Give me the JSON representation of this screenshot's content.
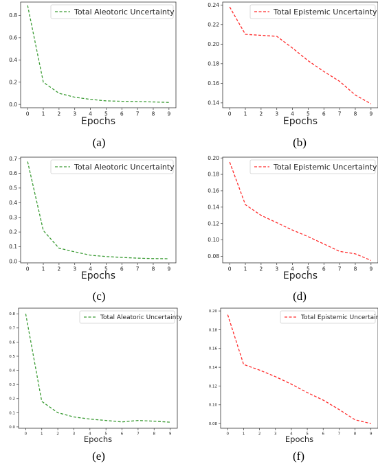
{
  "colors": {
    "aleatoric": "#3a9b33",
    "epistemic": "#ff2a2a"
  },
  "chart_data": [
    {
      "panel": "(a)",
      "type": "line",
      "caption": "(a)",
      "xlabel": "Epochs",
      "ylabel": "",
      "x": [
        0,
        1,
        2,
        3,
        4,
        5,
        6,
        7,
        8,
        9
      ],
      "xticks": [
        0,
        1,
        2,
        3,
        4,
        5,
        6,
        7,
        8,
        9
      ],
      "ylim": [
        -0.03,
        0.92
      ],
      "yticks": [
        0.0,
        0.2,
        0.4,
        0.6,
        0.8
      ],
      "ytick_labels": [
        "0.0",
        "0.2",
        "0.4",
        "0.6",
        "0.8"
      ],
      "legend_position": "top-right",
      "series": [
        {
          "name": "Total Aleotoric Uncertainty",
          "color": "#3a9b33",
          "style": "dashed",
          "values": [
            0.89,
            0.2,
            0.1,
            0.065,
            0.045,
            0.032,
            0.028,
            0.026,
            0.022,
            0.018
          ]
        }
      ]
    },
    {
      "panel": "(b)",
      "type": "line",
      "caption": "(b)",
      "xlabel": "Epochs",
      "ylabel": "",
      "x": [
        0,
        1,
        2,
        3,
        4,
        5,
        6,
        7,
        8,
        9
      ],
      "xticks": [
        0,
        1,
        2,
        3,
        4,
        5,
        6,
        7,
        8,
        9
      ],
      "ylim": [
        0.135,
        0.243
      ],
      "yticks": [
        0.14,
        0.16,
        0.18,
        0.2,
        0.22,
        0.24
      ],
      "ytick_labels": [
        "0.14",
        "0.16",
        "0.18",
        "0.20",
        "0.22",
        "0.24"
      ],
      "legend_position": "top-right",
      "series": [
        {
          "name": "Total Epistemic Uncertainty",
          "color": "#ff2a2a",
          "style": "dashed",
          "values": [
            0.238,
            0.21,
            0.209,
            0.208,
            0.196,
            0.183,
            0.172,
            0.162,
            0.148,
            0.139
          ]
        }
      ]
    },
    {
      "panel": "(c)",
      "type": "line",
      "caption": "(c)",
      "xlabel": "Epochs",
      "ylabel": "",
      "x": [
        0,
        1,
        2,
        3,
        4,
        5,
        6,
        7,
        8,
        9
      ],
      "xticks": [
        0,
        1,
        2,
        3,
        4,
        5,
        6,
        7,
        8,
        9
      ],
      "ylim": [
        -0.01,
        0.71
      ],
      "yticks": [
        0.0,
        0.1,
        0.2,
        0.3,
        0.4,
        0.5,
        0.6,
        0.7
      ],
      "ytick_labels": [
        "0.0",
        "0.1",
        "0.2",
        "0.3",
        "0.4",
        "0.5",
        "0.6",
        "0.7"
      ],
      "legend_position": "top-right",
      "series": [
        {
          "name": "Total Aleotoric Uncertainty",
          "color": "#3a9b33",
          "style": "dashed",
          "values": [
            0.68,
            0.21,
            0.09,
            0.065,
            0.042,
            0.033,
            0.027,
            0.022,
            0.019,
            0.018
          ]
        }
      ]
    },
    {
      "panel": "(d)",
      "type": "line",
      "caption": "(d)",
      "xlabel": "Epochs",
      "ylabel": "",
      "x": [
        0,
        1,
        2,
        3,
        4,
        5,
        6,
        7,
        8,
        9
      ],
      "xticks": [
        0,
        1,
        2,
        3,
        4,
        5,
        6,
        7,
        8,
        9
      ],
      "ylim": [
        0.072,
        0.201
      ],
      "yticks": [
        0.08,
        0.1,
        0.12,
        0.14,
        0.16,
        0.18,
        0.2
      ],
      "ytick_labels": [
        "0.08",
        "0.10",
        "0.12",
        "0.14",
        "0.16",
        "0.18",
        "0.20"
      ],
      "legend_position": "top-right",
      "series": [
        {
          "name": "Total Epistemic Uncertainty",
          "color": "#ff2a2a",
          "style": "dashed",
          "values": [
            0.195,
            0.143,
            0.13,
            0.121,
            0.112,
            0.104,
            0.095,
            0.086,
            0.083,
            0.075
          ]
        }
      ]
    },
    {
      "panel": "(e)",
      "type": "line",
      "caption": "(e)",
      "xlabel": "Epochs",
      "ylabel": "",
      "x": [
        0,
        1,
        2,
        3,
        4,
        5,
        6,
        7,
        8,
        9
      ],
      "xticks": [
        0,
        1,
        2,
        3,
        4,
        5,
        6,
        7,
        8,
        9
      ],
      "ylim": [
        -0.01,
        0.84
      ],
      "yticks": [
        0.0,
        0.1,
        0.2,
        0.3,
        0.4,
        0.5,
        0.6,
        0.7,
        0.8
      ],
      "ytick_labels": [
        "0.0",
        "0.1",
        "0.2",
        "0.3",
        "0.4",
        "0.5",
        "0.6",
        "0.7",
        "0.8"
      ],
      "legend_position": "top-right",
      "series": [
        {
          "name": "Total Aleatoric Uncertainty",
          "color": "#3a9b33",
          "style": "dashed",
          "values": [
            0.8,
            0.18,
            0.1,
            0.07,
            0.055,
            0.045,
            0.035,
            0.045,
            0.04,
            0.033
          ]
        }
      ]
    },
    {
      "panel": "(f)",
      "type": "line",
      "caption": "(f)",
      "xlabel": "Epochs",
      "ylabel": "",
      "x": [
        0,
        1,
        2,
        3,
        4,
        5,
        6,
        7,
        8,
        9
      ],
      "xticks": [
        0,
        1,
        2,
        3,
        4,
        5,
        6,
        7,
        8,
        9
      ],
      "ylim": [
        0.075,
        0.203
      ],
      "yticks": [
        0.08,
        0.1,
        0.12,
        0.14,
        0.16,
        0.18,
        0.2
      ],
      "ytick_labels": [
        "0.08",
        "0.10",
        "0.12",
        "0.14",
        "0.16",
        "0.18",
        "0.20"
      ],
      "legend_position": "top-right",
      "series": [
        {
          "name": "Total Epistemic Uncertainty",
          "color": "#ff2a2a",
          "style": "dashed",
          "values": [
            0.196,
            0.143,
            0.137,
            0.13,
            0.122,
            0.113,
            0.105,
            0.095,
            0.084,
            0.08
          ]
        }
      ]
    }
  ]
}
